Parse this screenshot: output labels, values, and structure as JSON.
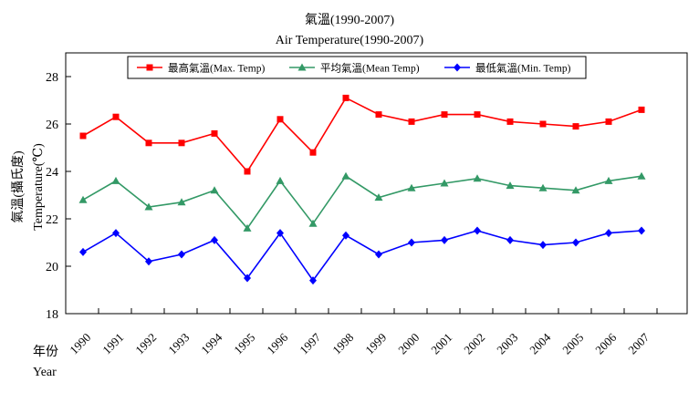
{
  "chart_data": {
    "type": "line",
    "title": "氣溫(1990-2007)",
    "subtitle": "Air Temperature(1990-2007)",
    "ylabel_zh": "氣溫(攝氏度)",
    "ylabel_en": "Temperature(℃)",
    "xlabel_zh": "年份",
    "xlabel_en": "Year",
    "ylim": [
      18,
      29
    ],
    "yticks": [
      18,
      20,
      22,
      24,
      26,
      28
    ],
    "grid": false,
    "legend_position": "top",
    "categories": [
      "1990",
      "1991",
      "1992",
      "1993",
      "1994",
      "1995",
      "1996",
      "1997",
      "1998",
      "1999",
      "2000",
      "2001",
      "2002",
      "2003",
      "2004",
      "2005",
      "2006",
      "2007"
    ],
    "series": [
      {
        "name": "最高氣溫(Max. Temp)",
        "color": "#ff0000",
        "marker": "square",
        "values": [
          25.5,
          26.3,
          25.2,
          25.2,
          25.6,
          24.0,
          26.2,
          24.8,
          27.1,
          26.4,
          26.1,
          26.4,
          26.4,
          26.1,
          26.0,
          25.9,
          26.1,
          26.6
        ]
      },
      {
        "name": "平均氣溫(Mean Temp)",
        "color": "#339966",
        "marker": "triangle",
        "values": [
          22.8,
          23.6,
          22.5,
          22.7,
          23.2,
          21.6,
          23.6,
          21.8,
          23.8,
          22.9,
          23.3,
          23.5,
          23.7,
          23.4,
          23.3,
          23.2,
          23.6,
          23.8
        ]
      },
      {
        "name": "最低氣溫(Min. Temp)",
        "color": "#0000ff",
        "marker": "diamond",
        "values": [
          20.6,
          21.4,
          20.2,
          20.5,
          21.1,
          19.5,
          21.4,
          19.4,
          21.3,
          20.5,
          21.0,
          21.1,
          21.5,
          21.1,
          20.9,
          21.0,
          21.4,
          21.5
        ]
      }
    ]
  }
}
